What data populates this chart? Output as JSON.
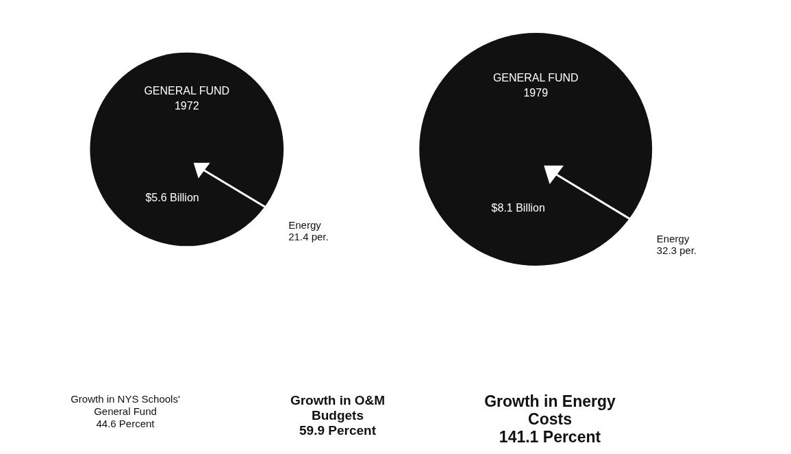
{
  "chart_data": {
    "type": "other",
    "categories": [
      "GENERAL FUND\n1972",
      "GENERAL FUND\n1979"
    ],
    "values": [
      5.6,
      8.1
    ],
    "value_labels": [
      "$5.6 Billion",
      "$8.1 Billion"
    ],
    "colors": [
      "#111111",
      "#111111"
    ],
    "annotations": [
      {
        "text": "Energy\n21.4 per.",
        "x": "GENERAL FUND\n1972"
      },
      {
        "text": "Energy\n32.3 per.",
        "x": "GENERAL FUND\n1979"
      },
      "Growth in NYS Schools'\nGeneral Fund\n44.6 Percent",
      "Growth in O&M\nBudgets\n59.9 Percent",
      "Growth in Energy\nCosts\n141.1 Percent"
    ]
  }
}
